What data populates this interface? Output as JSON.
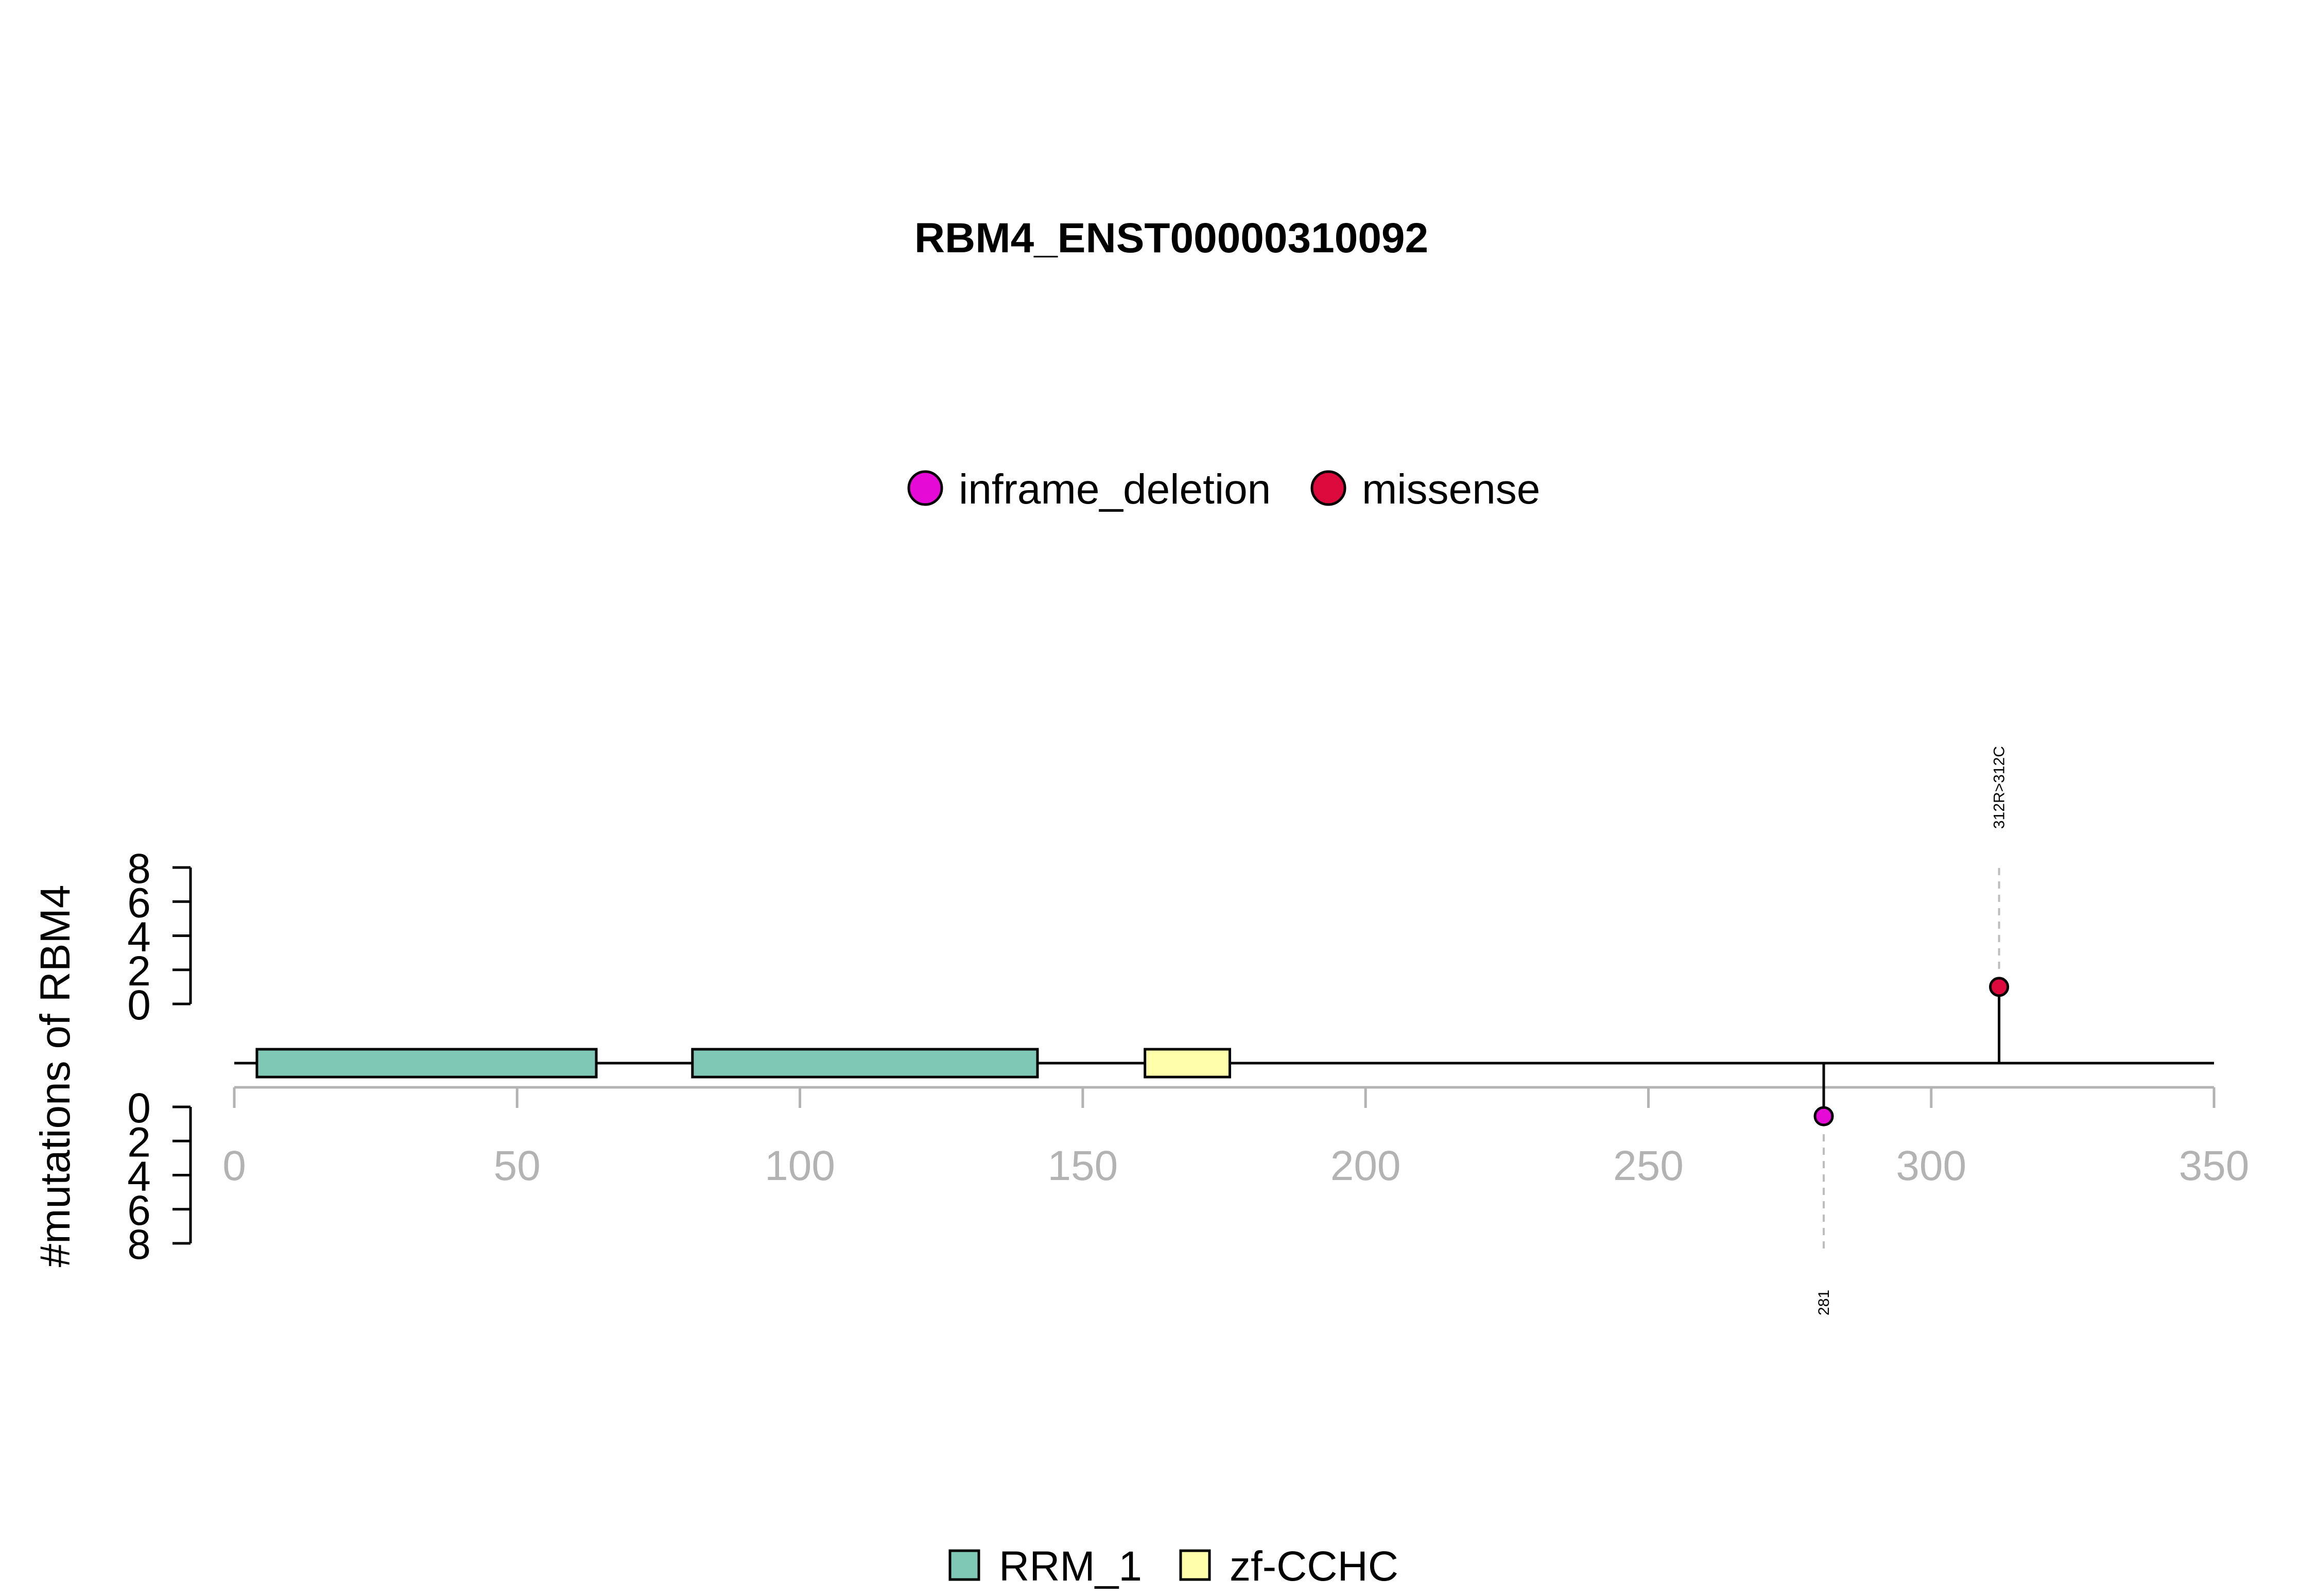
{
  "chart_data": {
    "type": "lollipop",
    "title": "RBM4_ENST00000310092",
    "ylabel": "#mutations of RBM4",
    "xlim": [
      0,
      350
    ],
    "x_ticks": [
      0,
      50,
      100,
      150,
      200,
      250,
      300,
      350
    ],
    "ylim_top": [
      0,
      8
    ],
    "ylim_bottom": [
      0,
      8
    ],
    "y_ticks": [
      0,
      2,
      4,
      6,
      8
    ],
    "mutation_legend": [
      {
        "name": "inframe_deletion",
        "color": "#E60AD6"
      },
      {
        "name": "missense",
        "color": "#DC0A3C"
      }
    ],
    "mutations": [
      {
        "position": 312,
        "count": 1,
        "type": "missense",
        "label": "312R>312C",
        "side": "top",
        "color": "#DC0A3C"
      },
      {
        "position": 281,
        "count": 1,
        "type": "inframe_deletion",
        "label": "281",
        "side": "bottom",
        "color": "#E60AD6"
      }
    ],
    "domain_legend": [
      {
        "name": "RRM_1",
        "color": "#7FC8B6"
      },
      {
        "name": "zf-CCHC",
        "color": "#FFFFAA"
      }
    ],
    "domains": [
      {
        "name": "RRM_1",
        "start": 4,
        "end": 64,
        "color": "#7FC8B6"
      },
      {
        "name": "RRM_1",
        "start": 81,
        "end": 142,
        "color": "#7FC8B6"
      },
      {
        "name": "zf-CCHC",
        "start": 161,
        "end": 176,
        "color": "#FFFFAA"
      }
    ]
  }
}
